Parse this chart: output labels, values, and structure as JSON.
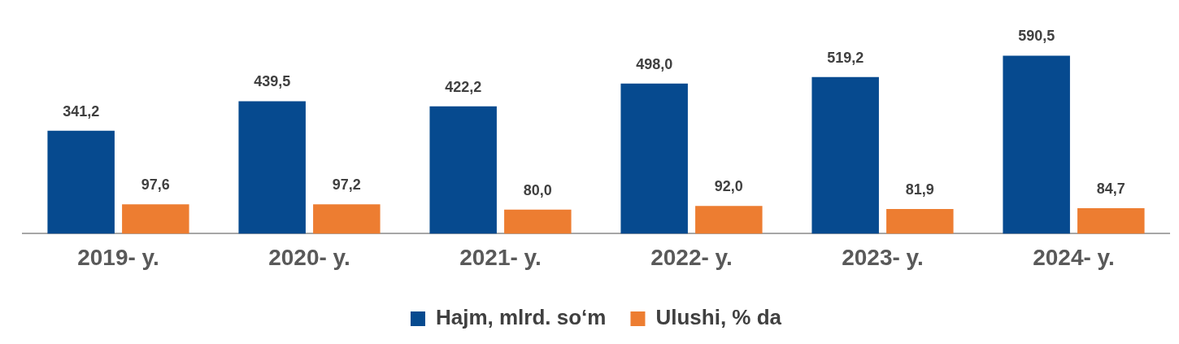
{
  "chart_data": {
    "type": "bar",
    "categories": [
      "2019- y.",
      "2020- y.",
      "2021- y.",
      "2022- y.",
      "2023- y.",
      "2024- y."
    ],
    "series": [
      {
        "name": "Hajm, mlrd. so‘m",
        "color": "#064a8f",
        "values": [
          341.2,
          439.5,
          422.2,
          498.0,
          519.2,
          590.5
        ],
        "value_labels": [
          "341,2",
          "439,5",
          "422,2",
          "498,0",
          "519,2",
          "590,5"
        ]
      },
      {
        "name": "Ulushi, % da",
        "color": "#ed7d31",
        "values": [
          97.6,
          97.2,
          80.0,
          92.0,
          81.9,
          84.7
        ],
        "value_labels": [
          "97,6",
          "97,2",
          "80,0",
          "92,0",
          "81,9",
          "84,7"
        ]
      }
    ],
    "legend": "bottom",
    "grid": false
  }
}
